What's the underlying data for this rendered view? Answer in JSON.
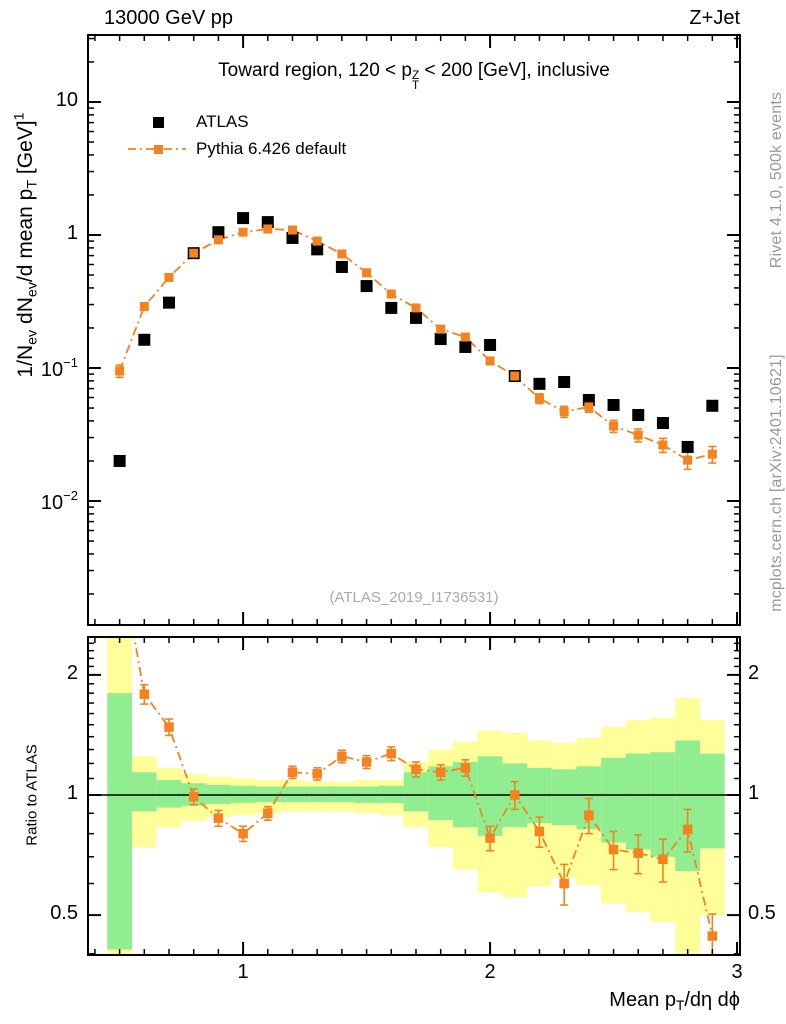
{
  "header": {
    "left": "13000 GeV pp",
    "right": "Z+Jet"
  },
  "title": {
    "prefix": "Toward region, 120 < p",
    "stack_top": "Z",
    "stack_bottom": "T",
    "suffix": " < 200 [GeV], inclusive"
  },
  "legend": {
    "atlas_label": "ATLAS",
    "pythia_label": "Pythia 6.426 default"
  },
  "y_axis_label": {
    "p1": "1/N",
    "s1": "ev",
    "p2": " dN",
    "s2": "ev",
    "p3": "/d mean p",
    "s3": "T",
    "p4": " [GeV]",
    "sup": "1"
  },
  "x_axis_label": {
    "prefix": "Mean p",
    "sub": "T",
    "suffix": "/dη dϕ"
  },
  "ratio_axis_label": "Ratio to ATLAS",
  "watermark": "(ATLAS_2019_I1736531)",
  "side_text_top": "Rivet 4.1.0,  500k events",
  "side_text_bottom": "mcplots.cern.ch [arXiv:2401.10621]",
  "colors": {
    "pythia_orange": "#f5821f",
    "band_yellow": "#ffff99",
    "band_green": "#90ee90",
    "gray_text": "#999999",
    "watermark_gray": "#aaaaaa"
  },
  "chart_data": [
    {
      "type": "line",
      "title": "Toward region, 120 < pT^Z < 200 [GeV], inclusive",
      "xlabel": "Mean pT/dη dϕ",
      "ylabel": "1/Nev dNev/d mean pT [GeV]^1",
      "x_scale": "linear",
      "y_scale": "log",
      "xlim": [
        0.372,
        3.012
      ],
      "ylim": [
        0.00117,
        31.9
      ],
      "grid": false,
      "legend_position": "top-left",
      "x": [
        0.5,
        0.6,
        0.7,
        0.8,
        0.9,
        1.0,
        1.1,
        1.2,
        1.3,
        1.4,
        1.5,
        1.6,
        1.7,
        1.8,
        1.9,
        2.0,
        2.1,
        2.2,
        2.3,
        2.4,
        2.5,
        2.6,
        2.7,
        2.8,
        2.9
      ],
      "series": [
        {
          "name": "ATLAS",
          "marker": "black-square",
          "values": [
            0.02,
            0.163,
            0.31,
            0.73,
            1.05,
            1.34,
            1.25,
            0.95,
            0.78,
            0.575,
            0.413,
            0.283,
            0.238,
            0.165,
            0.144,
            0.149,
            0.087,
            0.076,
            0.0785,
            0.0575,
            0.0527,
            0.0443,
            0.0386,
            0.0255,
            0.052
          ]
        },
        {
          "name": "Pythia 6.426 default",
          "marker": "orange-square",
          "line": "dash-dot",
          "values": [
            0.095,
            0.29,
            0.48,
            0.73,
            0.92,
            1.05,
            1.11,
            1.09,
            0.9,
            0.72,
            0.52,
            0.36,
            0.283,
            0.196,
            0.171,
            0.113,
            0.087,
            0.059,
            0.047,
            0.051,
            0.0366,
            0.0313,
            0.0264,
            0.0203,
            0.0225
          ],
          "yerr": [
            0.01,
            0.015,
            0.018,
            0.02,
            0.025,
            0.028,
            0.028,
            0.028,
            0.024,
            0.02,
            0.016,
            0.013,
            0.011,
            0.009,
            0.009,
            0.007,
            0.006,
            0.005,
            0.0045,
            0.0045,
            0.0038,
            0.0035,
            0.0032,
            0.003,
            0.0032
          ]
        }
      ],
      "y_ticks": [
        {
          "base": "10",
          "exp": "",
          "v": 10
        },
        {
          "base": "1",
          "exp": "",
          "v": 1
        },
        {
          "base": "10",
          "exp": "−1",
          "v": 0.1
        },
        {
          "base": "10",
          "exp": "−2",
          "v": 0.01
        }
      ],
      "x_ticks": [
        {
          "label": "1",
          "v": 1
        },
        {
          "label": "2",
          "v": 2
        },
        {
          "label": "3",
          "v": 3
        }
      ]
    },
    {
      "type": "line",
      "title": "Ratio to ATLAS",
      "x_scale": "linear",
      "y_scale": "log",
      "xlim": [
        0.372,
        3.012
      ],
      "ylim": [
        0.397,
        2.49
      ],
      "bin_half_width": 0.05,
      "x": [
        0.5,
        0.6,
        0.7,
        0.8,
        0.9,
        1.0,
        1.1,
        1.2,
        1.3,
        1.4,
        1.5,
        1.6,
        1.7,
        1.8,
        1.9,
        2.0,
        2.1,
        2.2,
        2.3,
        2.4,
        2.5,
        2.6,
        2.7,
        2.8,
        2.9
      ],
      "series": [
        {
          "name": "Pythia/ATLAS ratio",
          "marker": "orange-square",
          "line": "dash-dot",
          "values": [
            4.0,
            1.79,
            1.48,
            0.99,
            0.875,
            0.8,
            0.9,
            1.14,
            1.13,
            1.25,
            1.21,
            1.27,
            1.16,
            1.14,
            1.17,
            0.78,
            1.0,
            0.81,
            0.6,
            0.89,
            0.73,
            0.715,
            0.69,
            0.82,
            0.443
          ],
          "yerr": [
            0.5,
            0.1,
            0.07,
            0.045,
            0.04,
            0.035,
            0.035,
            0.04,
            0.04,
            0.045,
            0.045,
            0.05,
            0.05,
            0.05,
            0.055,
            0.055,
            0.08,
            0.07,
            0.07,
            0.09,
            0.08,
            0.08,
            0.085,
            0.1,
            0.06
          ]
        }
      ],
      "bands": {
        "yellow_lo": [
          0.4,
          0.74,
          0.83,
          0.86,
          0.88,
          0.89,
          0.9,
          0.91,
          0.91,
          0.91,
          0.9,
          0.89,
          0.83,
          0.74,
          0.65,
          0.57,
          0.555,
          0.59,
          0.62,
          0.595,
          0.535,
          0.51,
          0.48,
          0.4,
          0.5
        ],
        "yellow_hi": [
          2.49,
          1.25,
          1.17,
          1.13,
          1.11,
          1.1,
          1.09,
          1.09,
          1.08,
          1.08,
          1.09,
          1.09,
          1.21,
          1.3,
          1.36,
          1.45,
          1.43,
          1.37,
          1.35,
          1.39,
          1.48,
          1.54,
          1.56,
          1.75,
          1.54
        ],
        "green_lo": [
          0.41,
          0.91,
          0.93,
          0.94,
          0.95,
          0.955,
          0.96,
          0.96,
          0.96,
          0.96,
          0.955,
          0.955,
          0.91,
          0.865,
          0.83,
          0.79,
          0.83,
          0.85,
          0.84,
          0.82,
          0.76,
          0.73,
          0.7,
          0.645,
          0.735
        ],
        "green_hi": [
          1.8,
          1.14,
          1.09,
          1.07,
          1.06,
          1.055,
          1.05,
          1.05,
          1.05,
          1.05,
          1.05,
          1.055,
          1.14,
          1.18,
          1.21,
          1.25,
          1.2,
          1.17,
          1.16,
          1.18,
          1.24,
          1.27,
          1.28,
          1.37,
          1.27
        ]
      },
      "reference_line": 1,
      "y_ticks": [
        {
          "label": "2",
          "v": 2
        },
        {
          "label": "1",
          "v": 1
        },
        {
          "label": "0.5",
          "v": 0.5
        }
      ],
      "x_ticks": [
        {
          "label": "1",
          "v": 1
        },
        {
          "label": "2",
          "v": 2
        },
        {
          "label": "3",
          "v": 3
        }
      ]
    }
  ]
}
